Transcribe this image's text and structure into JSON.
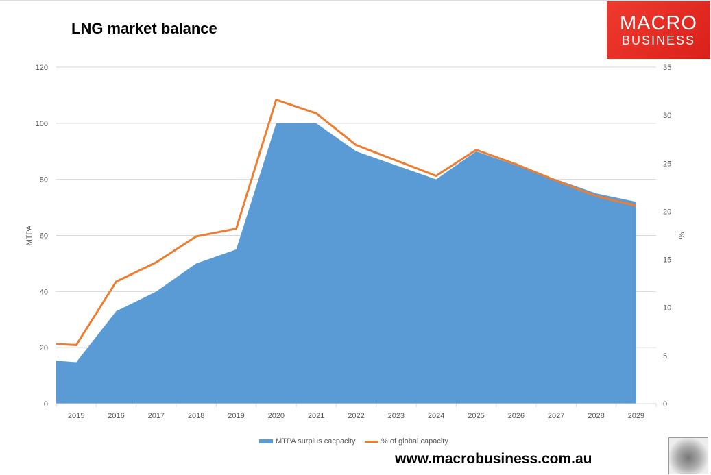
{
  "header": {
    "title": "LNG market balance",
    "logo_line1": "MACRO",
    "logo_line2": "BUSINESS"
  },
  "footer": {
    "url": "www.macrobusiness.com.au"
  },
  "colors": {
    "area": "#5b9bd5",
    "line": "#ed7d31",
    "grid": "#d9d9d9"
  },
  "chart_data": {
    "type": "area+line",
    "title": "LNG market balance",
    "ylabel": "MTPA",
    "y2label": "%",
    "ylim": [
      0,
      120
    ],
    "y2lim": [
      0,
      35
    ],
    "yticks": [
      0,
      20,
      40,
      60,
      80,
      100,
      120
    ],
    "y2ticks": [
      0,
      5,
      10,
      15,
      20,
      25,
      30,
      35
    ],
    "xlim": [
      2014.5,
      2029.5
    ],
    "categories": [
      "2015",
      "2016",
      "2017",
      "2018",
      "2019",
      "2020",
      "2021",
      "2022",
      "2023",
      "2024",
      "2025",
      "2026",
      "2027",
      "2028",
      "2029"
    ],
    "x": [
      2014.5,
      2015,
      2016,
      2017,
      2018,
      2019,
      2020,
      2021,
      2022,
      2023,
      2024,
      2025,
      2026,
      2027,
      2028,
      2029
    ],
    "grid": true,
    "legend": "bottom",
    "series": [
      {
        "name": "MTPA surplus cacpacity",
        "type": "area",
        "axis": "left",
        "values": [
          15.3,
          14.8,
          33,
          40,
          50,
          55,
          100,
          100,
          90,
          85,
          80,
          90,
          85,
          80,
          75,
          72
        ]
      },
      {
        "name": "% of global capacity",
        "type": "line",
        "axis": "right",
        "values": [
          6.2,
          6.1,
          12.7,
          14.7,
          17.4,
          18.2,
          31.6,
          30.2,
          26.9,
          25.3,
          23.7,
          26.4,
          24.9,
          23.2,
          21.6,
          20.6
        ]
      }
    ]
  }
}
